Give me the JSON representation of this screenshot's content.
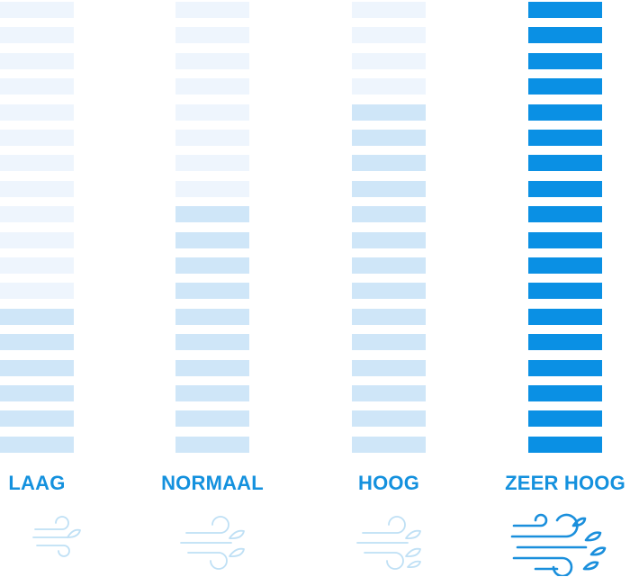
{
  "scale": {
    "total_segments": 18,
    "colors": {
      "empty": "#eef5fd",
      "filled_light": "#cfe6f8",
      "filled_max": "#0a90e4",
      "label_text": "#1491de",
      "icon_light": "#bfe0f5",
      "icon_max": "#1a8fdc"
    },
    "levels": [
      {
        "label": "LAAG",
        "filled_segments": 6,
        "max": false,
        "leaves": 1,
        "icon_name": "wind-leaf-icon"
      },
      {
        "label": "NORMAAL",
        "filled_segments": 10,
        "max": false,
        "leaves": 2,
        "icon_name": "wind-leaves-icon"
      },
      {
        "label": "HOOG",
        "filled_segments": 14,
        "max": false,
        "leaves": 3,
        "icon_name": "wind-leaves-icon"
      },
      {
        "label": "ZEER HOOG",
        "filled_segments": 18,
        "max": true,
        "leaves": 4,
        "icon_name": "strong-wind-leaves-icon"
      }
    ]
  }
}
